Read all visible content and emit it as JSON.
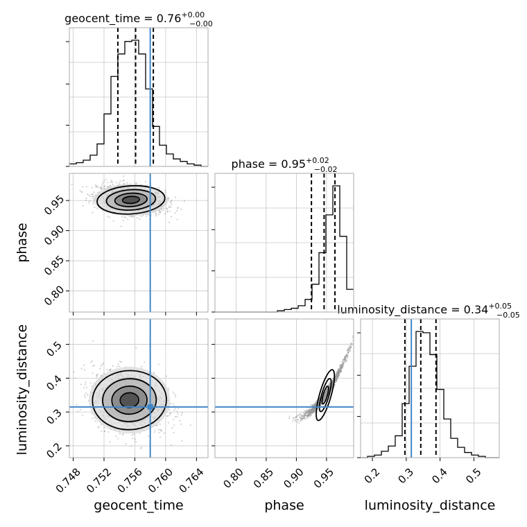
{
  "chart_data": {
    "type": "corner",
    "parameters": [
      "geocent_time",
      "phase",
      "luminosity_distance"
    ],
    "titles": [
      {
        "label": "geocent_time = 0.76",
        "plus": "+0.00",
        "minus": "−0.00"
      },
      {
        "label": "phase = 0.95",
        "plus": "+0.02",
        "minus": "−0.02"
      },
      {
        "label": "luminosity_distance = 0.34",
        "plus": "+0.05",
        "minus": "−0.05"
      }
    ],
    "axis_labels": {
      "x": [
        "geocent_time",
        "phase",
        "luminosity_distance"
      ],
      "y": [
        "phase",
        "luminosity_distance"
      ]
    },
    "ranges": {
      "geocent_time": [
        0.7475,
        0.7655
      ],
      "phase": [
        0.765,
        0.995
      ],
      "luminosity_distance": [
        0.165,
        0.575
      ]
    },
    "ticks": {
      "geocent_time": [
        "0.748",
        "0.752",
        "0.756",
        "0.760",
        "0.764"
      ],
      "phase": [
        "0.80",
        "0.85",
        "0.90",
        "0.95"
      ],
      "luminosity_distance": [
        "0.2",
        "0.3",
        "0.4",
        "0.5"
      ]
    },
    "truths": {
      "geocent_time": 0.758,
      "phase": null,
      "luminosity_distance": 0.315
    },
    "quantiles": {
      "geocent_time": [
        0.7538,
        0.7561,
        0.7584
      ],
      "phase": [
        0.925,
        0.946,
        0.964
      ],
      "luminosity_distance": [
        0.296,
        0.343,
        0.388
      ]
    },
    "histograms": {
      "geocent_time": {
        "edges_start": 0.7475,
        "bin_width": 0.0009,
        "counts": [
          2,
          3,
          5,
          9,
          18,
          42,
          72,
          90,
          100,
          101,
          90,
          62,
          32,
          17,
          10,
          6,
          4,
          2,
          1,
          0
        ]
      },
      "phase": {
        "edges_start": 0.765,
        "bin_width": 0.0115,
        "counts": [
          0,
          0,
          0,
          0,
          0,
          0,
          0,
          0,
          0,
          1,
          2,
          3,
          5,
          10,
          22,
          47,
          77,
          100,
          60,
          18
        ]
      },
      "luminosity_distance": {
        "edges_start": 0.165,
        "bin_width": 0.0205,
        "counts": [
          0,
          1,
          2,
          5,
          9,
          17,
          42,
          71,
          98,
          97,
          80,
          53,
          30,
          15,
          8,
          4,
          2,
          1,
          0,
          0
        ]
      }
    },
    "joint": {
      "geocent_time_vs_phase": {
        "center": [
          0.7555,
          0.951
        ],
        "sigma": [
          0.0022,
          0.012
        ],
        "rho": -0.3
      },
      "geocent_time_vs_luminosity_distance": {
        "center": [
          0.7553,
          0.335
        ],
        "sigma": [
          0.0024,
          0.045
        ],
        "rho": -0.2
      },
      "phase_vs_luminosity_distance": {
        "center": [
          0.948,
          0.35
        ],
        "sigma": [
          0.014,
          0.04
        ],
        "rho": 0.98
      }
    },
    "grid": true,
    "colors": {
      "truth": "#3f86c6",
      "hist": "#000000",
      "grid": "#c7c7c7"
    }
  }
}
